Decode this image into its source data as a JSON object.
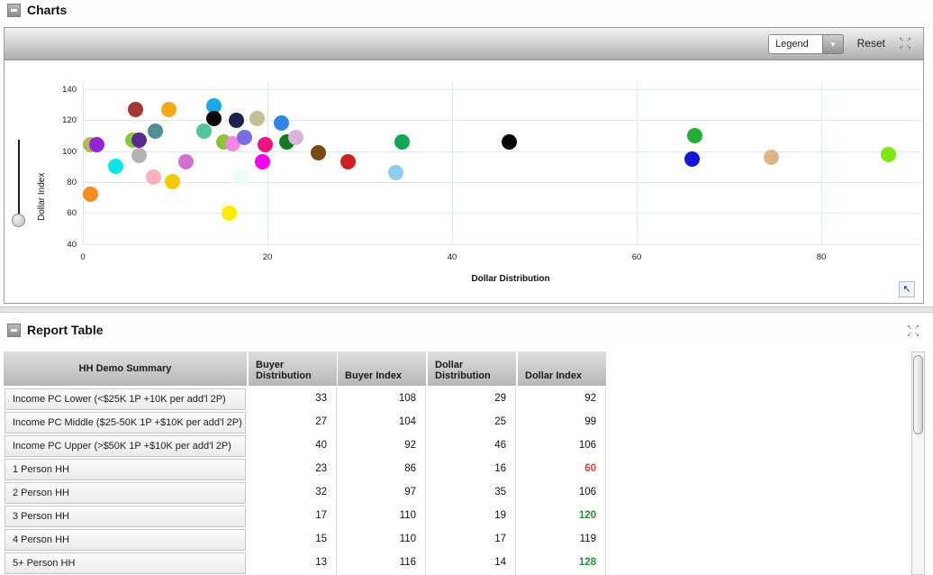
{
  "charts_section": {
    "title": "Charts",
    "toolbar": {
      "legend_label": "Legend",
      "reset_label": "Reset"
    }
  },
  "report_table_section": {
    "title": "Report Table"
  },
  "chart_data": {
    "type": "scatter",
    "title": "",
    "xlabel": "Dollar Distribution",
    "ylabel": "Dollar Index",
    "x_ticks": [
      0,
      20,
      40,
      60,
      80
    ],
    "y_ticks": [
      140,
      120,
      100,
      80,
      60,
      40
    ],
    "xlim": [
      0,
      90
    ],
    "ylim": [
      40,
      140
    ],
    "grid": true,
    "legend_position": "hidden",
    "points": [
      {
        "x": 0.8,
        "y": 104,
        "color": "#b9b35c"
      },
      {
        "x": 1.5,
        "y": 104,
        "color": "#9126d6"
      },
      {
        "x": 0.8,
        "y": 72,
        "color": "#f68b1f"
      },
      {
        "x": 3.6,
        "y": 90,
        "color": "#0ce6e6"
      },
      {
        "x": 5.7,
        "y": 127,
        "color": "#a93434"
      },
      {
        "x": 5.4,
        "y": 107,
        "color": "#8dc63f"
      },
      {
        "x": 6.1,
        "y": 107,
        "color": "#5b2a8e"
      },
      {
        "x": 6.1,
        "y": 97,
        "color": "#b3b3b3"
      },
      {
        "x": 7.9,
        "y": 113,
        "color": "#4e9096"
      },
      {
        "x": 9.3,
        "y": 127,
        "color": "#f8a815"
      },
      {
        "x": 7.7,
        "y": 83,
        "color": "#f9b0bf"
      },
      {
        "x": 9.7,
        "y": 80,
        "color": "#f5c800"
      },
      {
        "x": 11.2,
        "y": 93,
        "color": "#d26fd2"
      },
      {
        "x": 13.1,
        "y": 113,
        "color": "#52c49c"
      },
      {
        "x": 14.2,
        "y": 129,
        "color": "#18a9e8"
      },
      {
        "x": 14.2,
        "y": 121,
        "color": "#0b0b0b"
      },
      {
        "x": 16.6,
        "y": 120,
        "color": "#1a2250"
      },
      {
        "x": 18.9,
        "y": 121,
        "color": "#c4be9b"
      },
      {
        "x": 21.5,
        "y": 118,
        "color": "#2e86e6"
      },
      {
        "x": 15.3,
        "y": 106,
        "color": "#8bc437"
      },
      {
        "x": 16.2,
        "y": 105,
        "color": "#ef87e3"
      },
      {
        "x": 17.5,
        "y": 109,
        "color": "#7a6ee0"
      },
      {
        "x": 19.8,
        "y": 104,
        "color": "#ef1283"
      },
      {
        "x": 22.1,
        "y": 106,
        "color": "#0f7a20"
      },
      {
        "x": 23.1,
        "y": 109,
        "color": "#dab4da"
      },
      {
        "x": 19.5,
        "y": 93,
        "color": "#f203f2"
      },
      {
        "x": 25.5,
        "y": 99,
        "color": "#7c4a13"
      },
      {
        "x": 28.7,
        "y": 93,
        "color": "#cd2020"
      },
      {
        "x": 17.1,
        "y": 83,
        "color": "#e9fcf6"
      },
      {
        "x": 15.9,
        "y": 60,
        "color": "#f9ed00"
      },
      {
        "x": 34.6,
        "y": 106,
        "color": "#12a654"
      },
      {
        "x": 33.9,
        "y": 86,
        "color": "#90cdec"
      },
      {
        "x": 46.2,
        "y": 106,
        "color": "#050505"
      },
      {
        "x": 66.3,
        "y": 110,
        "color": "#20ae34"
      },
      {
        "x": 66.0,
        "y": 95,
        "color": "#1515da"
      },
      {
        "x": 74.6,
        "y": 96,
        "color": "#ddb687"
      },
      {
        "x": 87.3,
        "y": 98,
        "color": "#7ce912"
      }
    ]
  },
  "table": {
    "row_header_title": "HH Demo Summary",
    "columns": [
      "Buyer Distribution",
      "Buyer Index",
      "Dollar Distribution",
      "Dollar Index"
    ],
    "highlight_colors": {
      "low": "#cc4433",
      "high": "#2e8b2e"
    },
    "rows": [
      {
        "label": "Income PC Lower (<$25K 1P +10K per add'l 2P)",
        "values": [
          "33",
          "108",
          "29",
          "92"
        ],
        "dollar_index_highlight": null
      },
      {
        "label": "Income PC Middle ($25-50K 1P +$10K per add'l 2P)",
        "values": [
          "27",
          "104",
          "25",
          "99"
        ],
        "dollar_index_highlight": null
      },
      {
        "label": "Income PC Upper (>$50K 1P +$10K per add'l 2P)",
        "values": [
          "40",
          "92",
          "46",
          "106"
        ],
        "dollar_index_highlight": null
      },
      {
        "label": "1 Person HH",
        "values": [
          "23",
          "86",
          "16",
          "60"
        ],
        "dollar_index_highlight": "low"
      },
      {
        "label": "2 Person HH",
        "values": [
          "32",
          "97",
          "35",
          "106"
        ],
        "dollar_index_highlight": null
      },
      {
        "label": "3 Person HH",
        "values": [
          "17",
          "110",
          "19",
          "120"
        ],
        "dollar_index_highlight": "high"
      },
      {
        "label": "4 Person HH",
        "values": [
          "15",
          "110",
          "17",
          "119"
        ],
        "dollar_index_highlight": null
      },
      {
        "label": "5+ Person HH",
        "values": [
          "13",
          "116",
          "14",
          "128"
        ],
        "dollar_index_highlight": "high"
      }
    ]
  },
  "icons": {
    "collapse": "minus",
    "expand_arrows": [
      "↖",
      "↗",
      "↙",
      "↘"
    ],
    "dropdown_arrow": "▼",
    "restore_arrow": "↖"
  }
}
